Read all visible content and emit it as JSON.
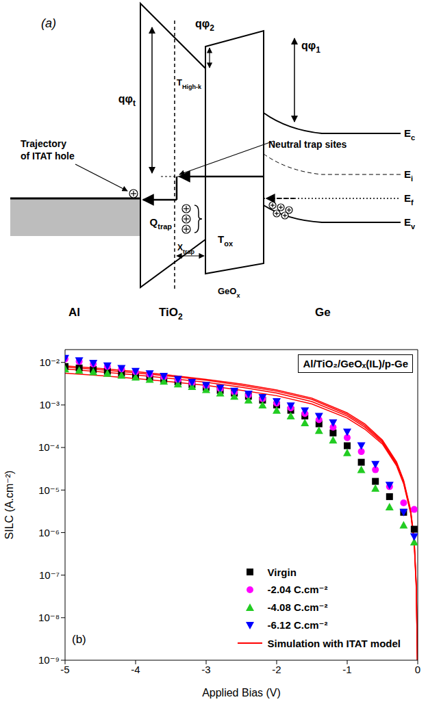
{
  "panel_a": {
    "letter": "(a)",
    "labels": {
      "phi_t": {
        "text": "qφ",
        "sub": "t"
      },
      "phi_2": {
        "text": "qφ",
        "sub": "2"
      },
      "phi_1": {
        "text": "qφ",
        "sub": "1"
      },
      "t_high_k": {
        "text": "T",
        "sub": "High-k"
      },
      "t_ox": {
        "text": "T",
        "sub": "ox"
      },
      "x_trap": {
        "text": "X",
        "sub": "trap"
      },
      "q_trap": {
        "text": "Q",
        "sub": "trap"
      },
      "ec": {
        "text": "E",
        "sub": "c"
      },
      "ei": {
        "text": "E",
        "sub": "i"
      },
      "ef": {
        "text": "E",
        "sub": "f"
      },
      "ev": {
        "text": "E",
        "sub": "v"
      },
      "layer_al": {
        "text": "Al"
      },
      "layer_tio2": {
        "text": "TiO",
        "sub": "2"
      },
      "layer_geox": {
        "text": "GeO",
        "sub": "x"
      },
      "layer_ge": {
        "text": "Ge"
      },
      "neutral": {
        "text": "Neutral trap sites"
      },
      "trajectory": {
        "text": "Trajectory of ITAT hole"
      }
    }
  },
  "chart_data": {
    "type": "scatter",
    "panel_label": "(b)",
    "annotations": [
      "Al/TiO₂/GeOₓ(IL)/p-Ge"
    ],
    "x_label": "Applied Bias (V)",
    "y_label": "SILC (A.cm⁻²)",
    "log": "y",
    "legend": "lower right",
    "xlim": [
      -5,
      0
    ],
    "xticks": [
      -5,
      -4,
      -3,
      -2,
      -1,
      0
    ],
    "ylim": [
      1e-09,
      0.02
    ],
    "yticks": [
      {
        "value": 1e-09,
        "label": "10⁻⁹"
      },
      {
        "value": 1e-08,
        "label": "10⁻⁸"
      },
      {
        "value": 1e-07,
        "label": "10⁻⁷"
      },
      {
        "value": 1e-06,
        "label": "10⁻⁶"
      },
      {
        "value": 1e-05,
        "label": "10⁻⁵"
      },
      {
        "value": 0.0001,
        "label": "10⁻⁴"
      },
      {
        "value": 0.001,
        "label": "10⁻³"
      },
      {
        "value": 0.01,
        "label": "10⁻²"
      }
    ],
    "x": [
      -5,
      -4.8,
      -4.6,
      -4.4,
      -4.2,
      -4,
      -3.8,
      -3.6,
      -3.4,
      -3.2,
      -3,
      -2.8,
      -2.6,
      -2.4,
      -2.2,
      -2,
      -1.8,
      -1.6,
      -1.4,
      -1.2,
      -1,
      -0.8,
      -0.6,
      -0.4,
      -0.2,
      -0.05
    ],
    "series": [
      {
        "name": "Virgin",
        "type": "scatter",
        "marker": "square",
        "color": "#000000",
        "values": [
          0.008,
          0.0074,
          0.0068,
          0.0062,
          0.0056,
          0.005,
          0.0045,
          0.004,
          0.0035,
          0.003,
          0.0026,
          0.0022,
          0.0019,
          0.0016,
          0.0013,
          0.001,
          0.00075,
          0.00055,
          0.00036,
          0.00022,
          0.00011,
          4.5e-05,
          1.6e-05,
          7e-06,
          3e-06,
          1.2e-06
        ]
      },
      {
        "name": "-2.04 C.cm⁻²",
        "type": "scatter",
        "marker": "circle",
        "color": "#ff00ff",
        "values": [
          0.012,
          0.0105,
          0.0092,
          0.008,
          0.007,
          0.006,
          0.0052,
          0.0045,
          0.0039,
          0.0033,
          0.0028,
          0.0024,
          0.002,
          0.0017,
          0.0014,
          0.0011,
          0.00085,
          0.00063,
          0.00045,
          0.0003,
          0.00017,
          8e-05,
          3e-05,
          1.2e-05,
          5e-06,
          3.5e-06
        ]
      },
      {
        "name": "-4.08 C.cm⁻²",
        "type": "scatter",
        "marker": "triangle",
        "color": "#22cc22",
        "values": [
          0.007,
          0.0065,
          0.006,
          0.0055,
          0.005,
          0.0045,
          0.004,
          0.0036,
          0.0031,
          0.0027,
          0.0023,
          0.0019,
          0.0016,
          0.0013,
          0.001,
          0.00075,
          0.00055,
          0.00038,
          0.00025,
          0.00015,
          7.5e-05,
          3e-05,
          1.1e-05,
          4e-06,
          1.5e-06,
          6e-07
        ]
      },
      {
        "name": "-6.12 C.cm⁻²",
        "type": "scatter",
        "marker": "triangle_down",
        "color": "#0000ff",
        "values": [
          0.0125,
          0.011,
          0.0095,
          0.0083,
          0.0072,
          0.0062,
          0.0054,
          0.0047,
          0.004,
          0.0034,
          0.0029,
          0.0025,
          0.0021,
          0.0018,
          0.0015,
          0.0012,
          0.00095,
          0.00073,
          0.00054,
          0.00038,
          0.00023,
          0.00011,
          4e-05,
          1.3e-05,
          3e-06,
          8e-07
        ]
      },
      {
        "name": "Simulation with ITAT model",
        "type": "line",
        "line_style": "solid",
        "color": "#ff0000",
        "x": [
          -5,
          -4.5,
          -4,
          -3.5,
          -3,
          -2.5,
          -2,
          -1.5,
          -1,
          -0.75,
          -0.5,
          -0.3,
          -0.2,
          -0.1,
          -0.05,
          -0.02,
          -0.005
        ],
        "values": [
          0.0056,
          0.0049,
          0.0042,
          0.0035,
          0.0029,
          0.0022,
          0.00165,
          0.00105,
          0.00049,
          0.00027,
          0.00012,
          3.7e-05,
          1.4e-05,
          2.8e-06,
          5.5e-07,
          4.5e-08,
          1e-09
        ]
      },
      {
        "name": "Simulation with ITAT model",
        "type": "line",
        "line_style": "solid",
        "color": "#ff0000",
        "x": [
          -5,
          -4.5,
          -4,
          -3.5,
          -3,
          -2.5,
          -2,
          -1.5,
          -1,
          -0.75,
          -0.5,
          -0.3,
          -0.2,
          -0.1,
          -0.05,
          -0.02,
          -0.005
        ],
        "values": [
          0.007,
          0.006,
          0.0051,
          0.0042,
          0.0034,
          0.0026,
          0.0019,
          0.0012,
          0.00055,
          0.0003,
          0.00013,
          4e-05,
          1.5e-05,
          3e-06,
          6e-07,
          5e-08,
          1e-09
        ]
      },
      {
        "name": "Simulation with ITAT model",
        "type": "line",
        "line_style": "solid",
        "color": "#ff0000",
        "x": [
          -5,
          -4.5,
          -4,
          -3.5,
          -3,
          -2.5,
          -2,
          -1.5,
          -1,
          -0.75,
          -0.5,
          -0.3,
          -0.2,
          -0.1,
          -0.05,
          -0.02,
          -0.005
        ],
        "values": [
          0.0078,
          0.0067,
          0.0057,
          0.0047,
          0.0038,
          0.0029,
          0.0021,
          0.00135,
          0.0006,
          0.00033,
          0.00014,
          4.3e-05,
          1.6e-05,
          3.2e-06,
          6.5e-07,
          5.5e-08,
          1e-09
        ]
      },
      {
        "name": "Simulation with ITAT model",
        "type": "line",
        "line_style": "solid",
        "color": "#ff0000",
        "x": [
          -5,
          -4.5,
          -4,
          -3.5,
          -3,
          -2.5,
          -2,
          -1.5,
          -1,
          -0.75,
          -0.5,
          -0.3,
          -0.2,
          -0.1,
          -0.05,
          -0.02,
          -0.005
        ],
        "values": [
          0.0083,
          0.0072,
          0.0061,
          0.005,
          0.004,
          0.0031,
          0.00225,
          0.00145,
          0.00065,
          0.00036,
          0.00015,
          4.6e-05,
          1.7e-05,
          3.4e-06,
          7e-07,
          6e-08,
          1e-09
        ]
      }
    ]
  }
}
